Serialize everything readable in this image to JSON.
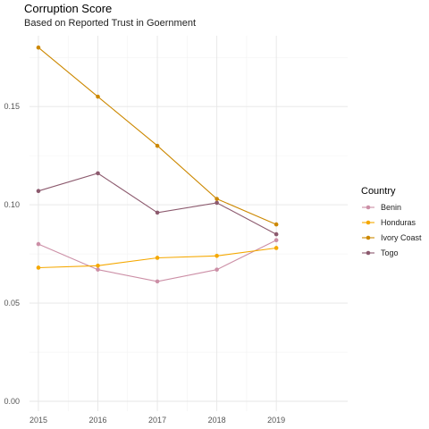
{
  "chart_data": {
    "type": "line",
    "title": "Corruption Score",
    "subtitle": "Based on Reported Trust in Goernment",
    "xlabel": "",
    "ylabel": "",
    "x": [
      2015,
      2016,
      2017,
      2018,
      2019
    ],
    "x_tick_labels": [
      "2015",
      "2016",
      "2017",
      "2018",
      "2019"
    ],
    "y_ticks": [
      0.0,
      0.05,
      0.1,
      0.15
    ],
    "y_tick_labels": [
      "0.00",
      "0.05",
      "0.10",
      "0.15"
    ],
    "ylim": [
      -0.005,
      0.186
    ],
    "xlim": [
      2014.85,
      2020.2
    ],
    "grid": true,
    "legend": {
      "title": "Country",
      "position": "right"
    },
    "series": [
      {
        "name": "Benin",
        "color": "#cc8fa6",
        "values": [
          0.08,
          0.067,
          0.061,
          0.067,
          0.082
        ]
      },
      {
        "name": "Honduras",
        "color": "#f5a800",
        "values": [
          0.068,
          0.069,
          0.073,
          0.074,
          0.078
        ]
      },
      {
        "name": "Ivory Coast",
        "color": "#cc8800",
        "values": [
          0.18,
          0.155,
          0.13,
          0.103,
          0.09
        ]
      },
      {
        "name": "Togo",
        "color": "#8c5a6e",
        "values": [
          0.107,
          0.116,
          0.096,
          0.101,
          0.085
        ]
      }
    ]
  }
}
